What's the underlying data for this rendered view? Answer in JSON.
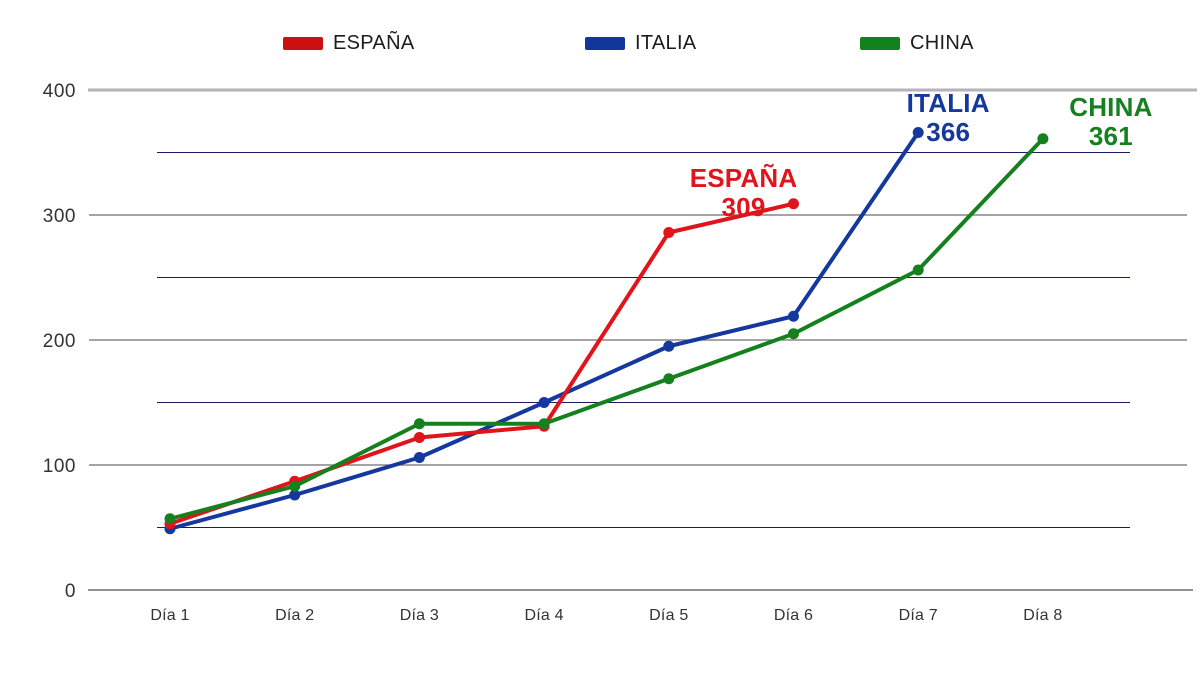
{
  "chart_data": {
    "type": "line",
    "title": "",
    "categories": [
      "Día 1",
      "Día 2",
      "Día 3",
      "Día 4",
      "Día 5",
      "Día 6",
      "Día 7",
      "Día 8"
    ],
    "xlabel": "",
    "ylabel": "",
    "ylim": [
      0,
      400
    ],
    "y_ticks": [
      0,
      100,
      200,
      300,
      400
    ],
    "y_minor_gridlines": [
      50,
      150,
      250,
      350
    ],
    "grid": true,
    "legend_position": "top",
    "series": [
      {
        "name": "ESPAÑA",
        "color": "#e1131b",
        "values": [
          53,
          87,
          122,
          131,
          286,
          309
        ],
        "end_label": {
          "title": "ESPAÑA",
          "value": "309"
        }
      },
      {
        "name": "ITALIA",
        "color": "#14389d",
        "values": [
          49,
          76,
          106,
          150,
          195,
          219,
          366
        ],
        "end_label": {
          "title": "ITALIA",
          "value": "366"
        }
      },
      {
        "name": "CHINA",
        "color": "#15811e",
        "values": [
          57,
          83,
          133,
          133,
          169,
          205,
          256,
          361
        ],
        "end_label": {
          "title": "CHINA",
          "value": "361"
        }
      }
    ],
    "colors": {
      "grid_major": "#6e6e6e",
      "grid_minor": "#1c1c5e",
      "axis": "#4d4d4d",
      "top_line": "#b3b3b8",
      "tick_text": "#333333"
    }
  },
  "legend": {
    "items": [
      {
        "label": "ESPAÑA",
        "color": "#cb100f"
      },
      {
        "label": "ITALIA",
        "color": "#12379a"
      },
      {
        "label": "CHINA",
        "color": "#12831c"
      }
    ]
  }
}
